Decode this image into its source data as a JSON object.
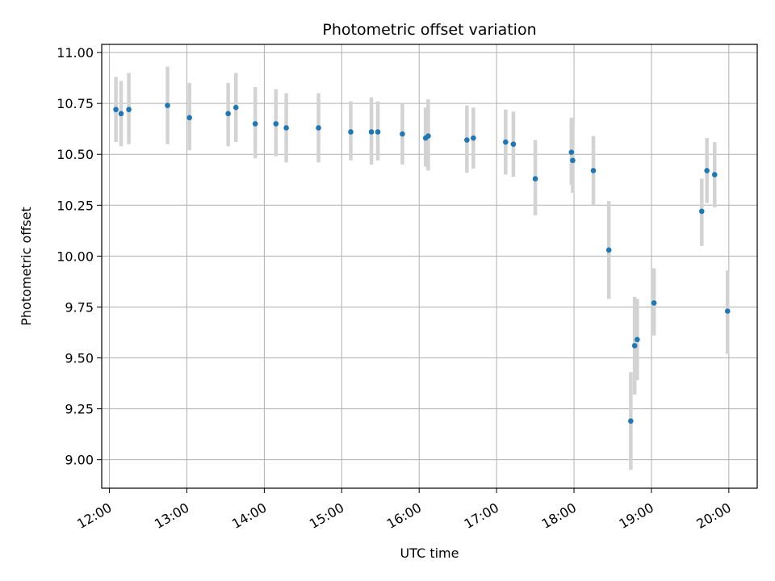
{
  "chart_data": {
    "type": "scatter",
    "title": "Photometric offset variation",
    "xlabel": "UTC time",
    "ylabel": "Photometric offset",
    "xlim": [
      "11:54",
      "20:22"
    ],
    "ylim": [
      8.86,
      11.04
    ],
    "x_ticks": [
      "12:00",
      "13:00",
      "14:00",
      "15:00",
      "16:00",
      "17:00",
      "18:00",
      "19:00",
      "20:00"
    ],
    "y_ticks": [
      "9.00",
      "9.25",
      "9.50",
      "9.75",
      "10.00",
      "10.25",
      "10.50",
      "10.75",
      "11.00"
    ],
    "grid": true,
    "marker_color": "#1f77b4",
    "errorbar_color": "#d3d3d3",
    "points": [
      {
        "x": "12:05",
        "y": 10.72,
        "yerr_low": 10.56,
        "yerr_high": 10.88
      },
      {
        "x": "12:09",
        "y": 10.7,
        "yerr_low": 10.54,
        "yerr_high": 10.86
      },
      {
        "x": "12:15",
        "y": 10.72,
        "yerr_low": 10.55,
        "yerr_high": 10.9
      },
      {
        "x": "12:45",
        "y": 10.74,
        "yerr_low": 10.55,
        "yerr_high": 10.93
      },
      {
        "x": "13:02",
        "y": 10.68,
        "yerr_low": 10.52,
        "yerr_high": 10.85
      },
      {
        "x": "13:32",
        "y": 10.7,
        "yerr_low": 10.54,
        "yerr_high": 10.85
      },
      {
        "x": "13:38",
        "y": 10.73,
        "yerr_low": 10.56,
        "yerr_high": 10.9
      },
      {
        "x": "13:53",
        "y": 10.65,
        "yerr_low": 10.48,
        "yerr_high": 10.83
      },
      {
        "x": "14:09",
        "y": 10.65,
        "yerr_low": 10.49,
        "yerr_high": 10.82
      },
      {
        "x": "14:17",
        "y": 10.63,
        "yerr_low": 10.46,
        "yerr_high": 10.8
      },
      {
        "x": "14:42",
        "y": 10.63,
        "yerr_low": 10.46,
        "yerr_high": 10.8
      },
      {
        "x": "15:07",
        "y": 10.61,
        "yerr_low": 10.47,
        "yerr_high": 10.76
      },
      {
        "x": "15:23",
        "y": 10.61,
        "yerr_low": 10.45,
        "yerr_high": 10.78
      },
      {
        "x": "15:28",
        "y": 10.61,
        "yerr_low": 10.47,
        "yerr_high": 10.76
      },
      {
        "x": "15:47",
        "y": 10.6,
        "yerr_low": 10.45,
        "yerr_high": 10.75
      },
      {
        "x": "16:05",
        "y": 10.58,
        "yerr_low": 10.44,
        "yerr_high": 10.73
      },
      {
        "x": "16:07",
        "y": 10.59,
        "yerr_low": 10.42,
        "yerr_high": 10.77
      },
      {
        "x": "16:37",
        "y": 10.57,
        "yerr_low": 10.41,
        "yerr_high": 10.74
      },
      {
        "x": "16:42",
        "y": 10.58,
        "yerr_low": 10.43,
        "yerr_high": 10.73
      },
      {
        "x": "17:07",
        "y": 10.56,
        "yerr_low": 10.4,
        "yerr_high": 10.72
      },
      {
        "x": "17:13",
        "y": 10.55,
        "yerr_low": 10.39,
        "yerr_high": 10.71
      },
      {
        "x": "17:30",
        "y": 10.38,
        "yerr_low": 10.2,
        "yerr_high": 10.57
      },
      {
        "x": "17:58",
        "y": 10.51,
        "yerr_low": 10.35,
        "yerr_high": 10.68
      },
      {
        "x": "17:59",
        "y": 10.47,
        "yerr_low": 10.31,
        "yerr_high": 10.64
      },
      {
        "x": "18:15",
        "y": 10.42,
        "yerr_low": 10.25,
        "yerr_high": 10.59
      },
      {
        "x": "18:27",
        "y": 10.03,
        "yerr_low": 9.79,
        "yerr_high": 10.27
      },
      {
        "x": "18:44",
        "y": 9.19,
        "yerr_low": 8.95,
        "yerr_high": 9.43
      },
      {
        "x": "18:47",
        "y": 9.56,
        "yerr_low": 9.32,
        "yerr_high": 9.8
      },
      {
        "x": "18:49",
        "y": 9.59,
        "yerr_low": 9.39,
        "yerr_high": 9.79
      },
      {
        "x": "19:02",
        "y": 9.77,
        "yerr_low": 9.61,
        "yerr_high": 9.94
      },
      {
        "x": "19:39",
        "y": 10.22,
        "yerr_low": 10.05,
        "yerr_high": 10.38
      },
      {
        "x": "19:43",
        "y": 10.42,
        "yerr_low": 10.26,
        "yerr_high": 10.58
      },
      {
        "x": "19:49",
        "y": 10.4,
        "yerr_low": 10.24,
        "yerr_high": 10.56
      },
      {
        "x": "19:59",
        "y": 9.73,
        "yerr_low": 9.52,
        "yerr_high": 9.93
      }
    ]
  }
}
